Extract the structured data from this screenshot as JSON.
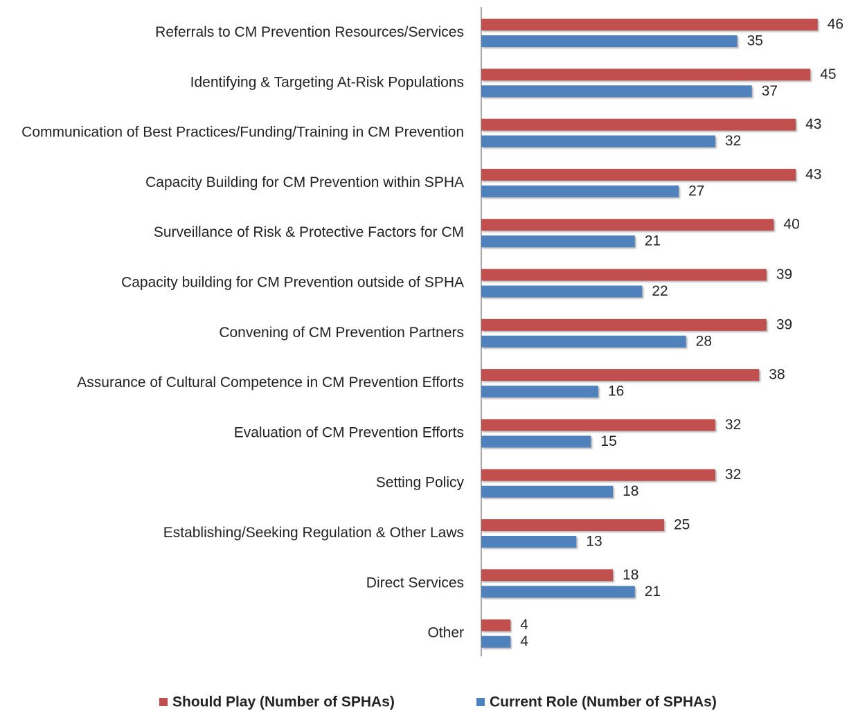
{
  "chart_data": {
    "type": "bar",
    "orientation": "horizontal",
    "categories": [
      "Referrals to CM Prevention Resources/Services",
      "Identifying & Targeting At-Risk Populations",
      "Communication of Best Practices/Funding/Training in CM Prevention",
      "Capacity Building for CM Prevention within SPHA",
      "Surveillance of Risk & Protective Factors for CM",
      "Capacity building for CM Prevention outside of SPHA",
      "Convening of CM Prevention Partners",
      "Assurance of Cultural Competence in CM Prevention Efforts",
      "Evaluation of CM Prevention Efforts",
      "Setting Policy",
      "Establishing/Seeking Regulation & Other Laws",
      "Direct Services",
      "Other"
    ],
    "series": [
      {
        "name": "Should Play (Number of SPHAs)",
        "color": "#c0504d",
        "values": [
          46,
          45,
          43,
          43,
          40,
          39,
          39,
          38,
          32,
          32,
          25,
          18,
          4
        ]
      },
      {
        "name": "Current Role (Number of SPHAs)",
        "color": "#4f81bd",
        "values": [
          35,
          37,
          32,
          27,
          21,
          22,
          28,
          16,
          15,
          18,
          13,
          21,
          4
        ]
      }
    ],
    "xlim": [
      0,
      50
    ],
    "legend": "bottom"
  }
}
